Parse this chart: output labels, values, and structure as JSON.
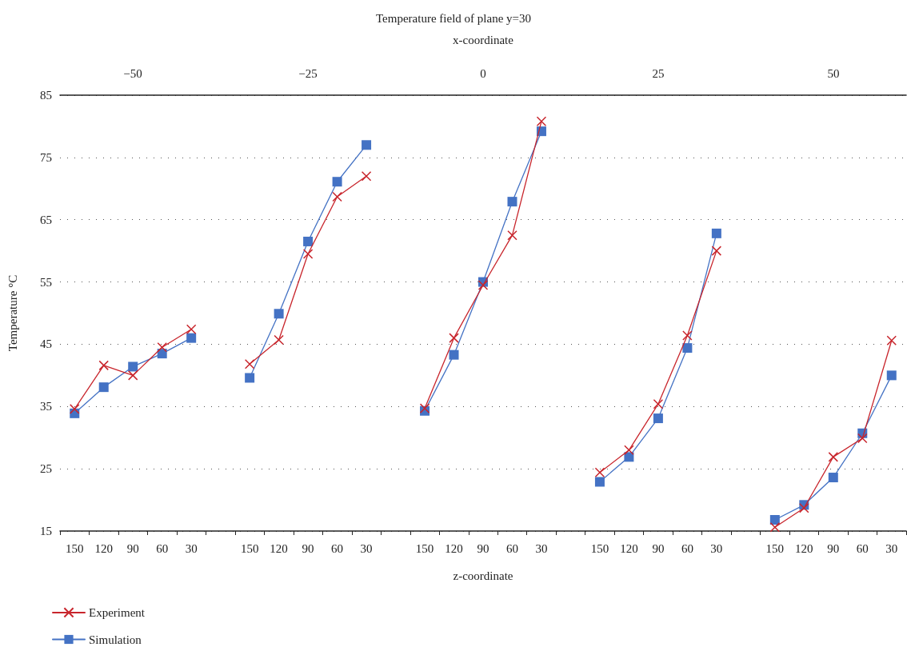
{
  "chart_data": {
    "type": "line",
    "title": "Temperature field of plane y=30",
    "xlabel": "z-coordinate",
    "ylabel": "Temperature °C",
    "x2label": "x-coordinate",
    "categories": [
      "150",
      "120",
      "90",
      "60",
      "30",
      null,
      "150",
      "120",
      "90",
      "60",
      "30",
      null,
      "150",
      "120",
      "90",
      "60",
      "30",
      null,
      "150",
      "120",
      "90",
      "60",
      "30",
      null,
      "150",
      "120",
      "90",
      "60",
      "30"
    ],
    "series": [
      {
        "name": "Experiment",
        "color": "#c8252c",
        "marker": "cross",
        "values": [
          34.6,
          41.6,
          40.0,
          44.5,
          47.4,
          null,
          41.8,
          45.7,
          59.5,
          68.7,
          72.0,
          null,
          34.7,
          46.0,
          54.5,
          62.5,
          80.8,
          null,
          24.4,
          28.0,
          35.4,
          46.4,
          60.0,
          null,
          15.6,
          18.7,
          26.9,
          29.9,
          45.6
        ]
      },
      {
        "name": "Simulation",
        "color": "#4472c4",
        "marker": "square",
        "values": [
          33.9,
          38.1,
          41.4,
          43.5,
          46.0,
          null,
          39.6,
          49.9,
          61.5,
          71.1,
          77.0,
          null,
          34.3,
          43.3,
          55.0,
          67.9,
          79.2,
          null,
          22.9,
          26.9,
          33.1,
          44.4,
          62.8,
          null,
          16.8,
          19.2,
          23.6,
          30.7,
          40.0
        ]
      }
    ],
    "ylim": [
      15,
      85
    ],
    "yticks": [
      15,
      25,
      35,
      45,
      55,
      65,
      75,
      85
    ],
    "x2lim": [
      -60.4,
      60.4
    ],
    "x2ticks": [
      -50,
      -25,
      0,
      25,
      50
    ],
    "grid": "y",
    "legend": "bottom left",
    "line_style": "solid"
  }
}
